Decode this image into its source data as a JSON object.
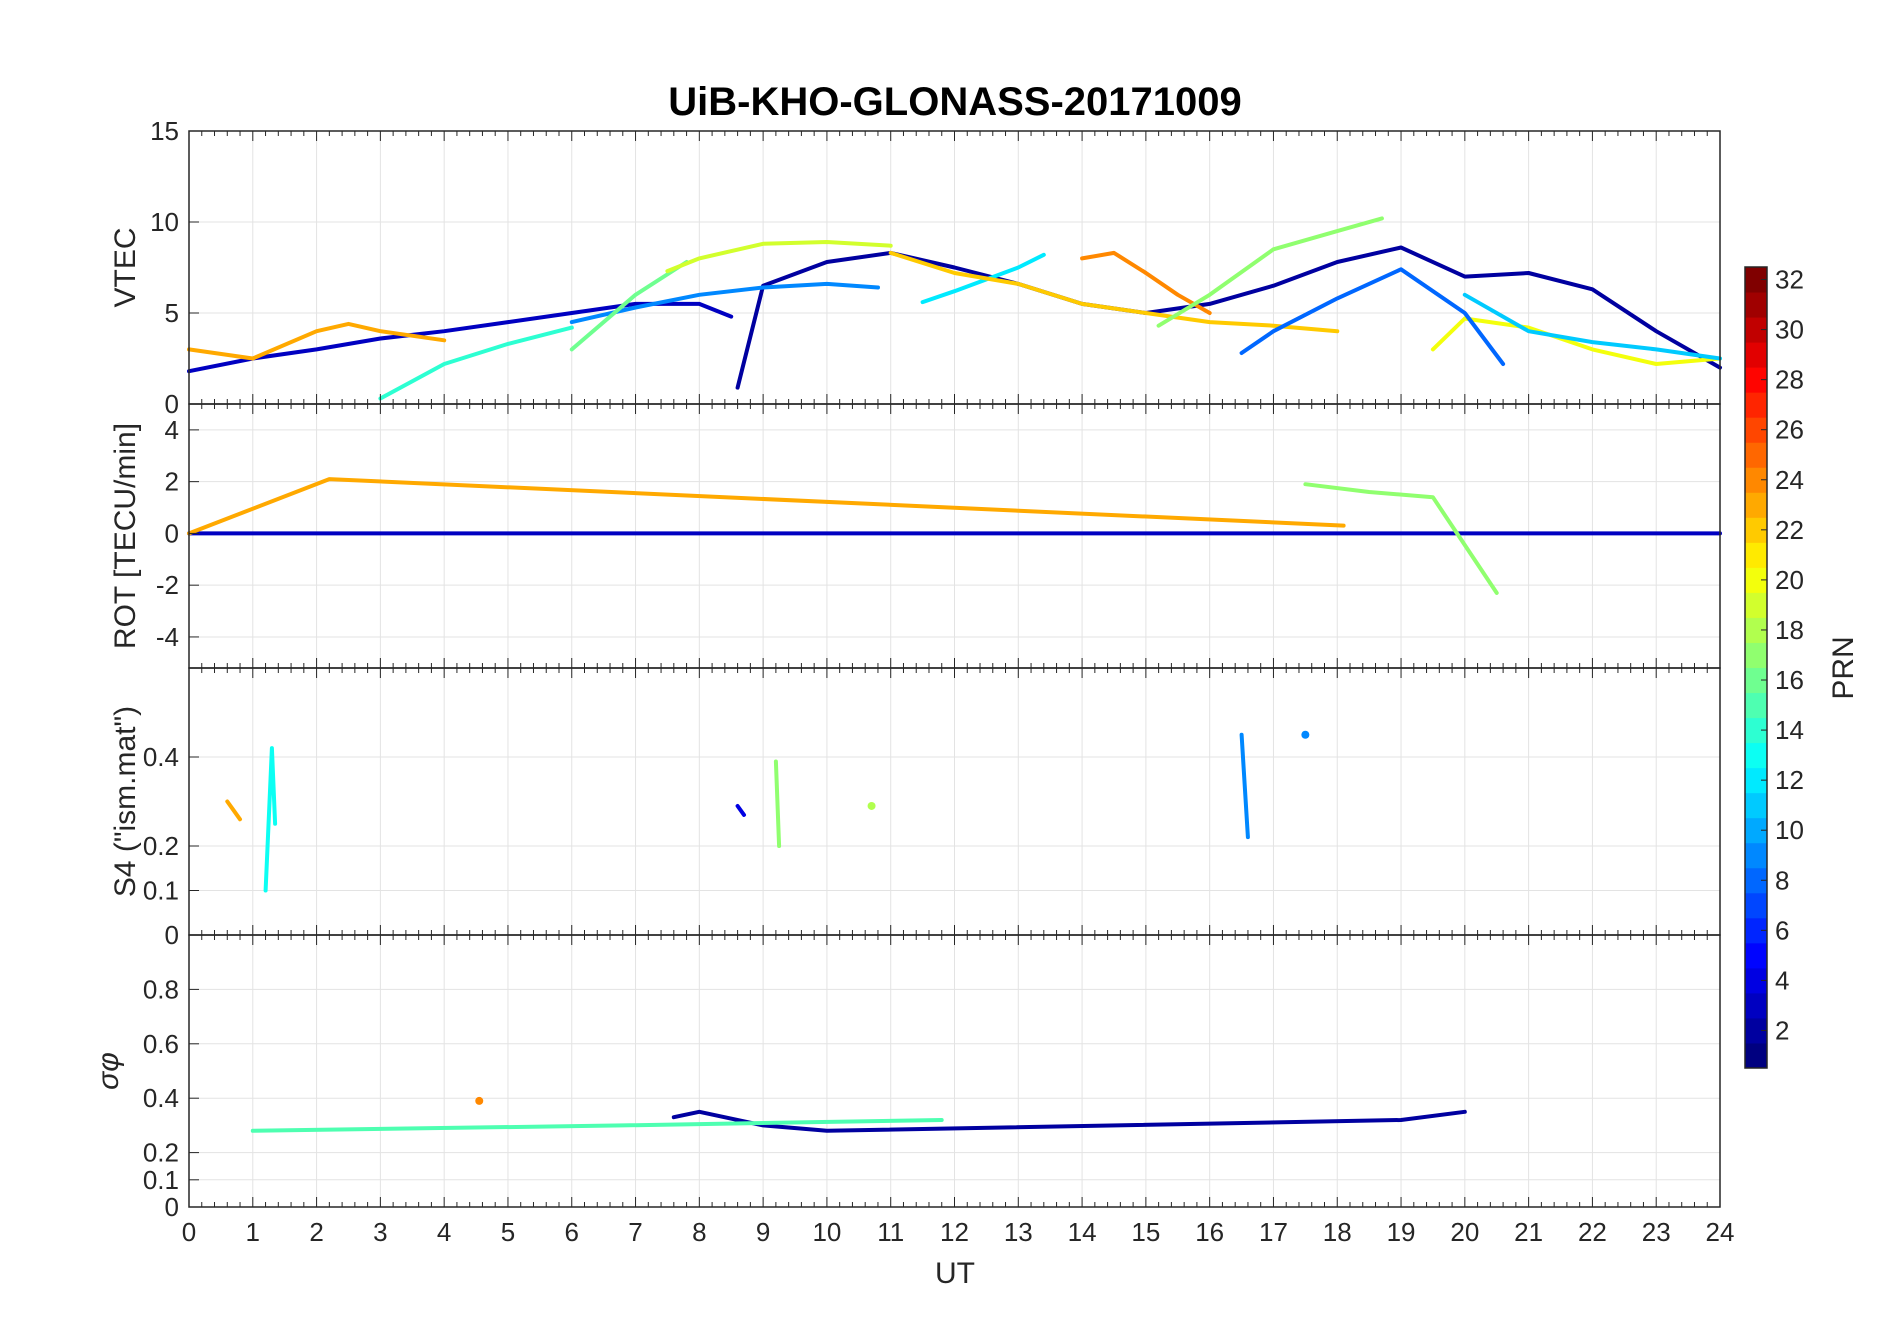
{
  "chart_data": {
    "type": "line",
    "title": "UiB-KHO-GLONASS-20171009",
    "xlabel": "UT",
    "x_ticks": [
      "0",
      "1",
      "2",
      "3",
      "4",
      "5",
      "6",
      "7",
      "8",
      "9",
      "10",
      "11",
      "12",
      "13",
      "14",
      "15",
      "16",
      "17",
      "18",
      "19",
      "20",
      "21",
      "22",
      "23",
      "24"
    ],
    "xlim": [
      0,
      24
    ],
    "grid": true,
    "colorbar": {
      "label": "PRN",
      "colormap": "jet",
      "range": [
        1,
        32
      ],
      "ticks": [
        "2",
        "4",
        "6",
        "8",
        "10",
        "12",
        "14",
        "16",
        "18",
        "20",
        "22",
        "24",
        "26",
        "28",
        "30",
        "32"
      ]
    },
    "panels": [
      {
        "ylabel": "VTEC",
        "ylim": [
          0,
          15
        ],
        "y_ticks": [
          "0",
          "5",
          "10",
          "15"
        ],
        "series": [
          {
            "prn": 3,
            "x": [
              0,
              1,
              2,
              3,
              4,
              5,
              6,
              7,
              8,
              8.5
            ],
            "y": [
              1.8,
              2.5,
              3.0,
              3.6,
              4.0,
              4.5,
              5.0,
              5.5,
              5.5,
              4.8
            ]
          },
          {
            "prn": 2,
            "x": [
              8.6,
              9,
              10,
              11,
              12,
              13,
              14,
              15,
              16,
              17,
              18,
              19,
              20,
              21,
              22,
              23,
              24
            ],
            "y": [
              0.9,
              6.5,
              7.8,
              8.3,
              7.5,
              6.6,
              5.5,
              5.0,
              5.5,
              6.5,
              7.8,
              8.6,
              7.0,
              7.2,
              6.3,
              4.0,
              2.0
            ]
          },
          {
            "prn": 9,
            "x": [
              6,
              7,
              8,
              9,
              10,
              10.8
            ],
            "y": [
              4.5,
              5.3,
              6.0,
              6.4,
              6.6,
              6.4
            ]
          },
          {
            "prn": 12,
            "x": [
              11.5,
              12,
              13,
              13.4
            ],
            "y": [
              5.6,
              6.2,
              7.5,
              8.2
            ]
          },
          {
            "prn": 16,
            "x": [
              6,
              7,
              7.8
            ],
            "y": [
              3.0,
              6.0,
              7.8
            ]
          },
          {
            "prn": 14,
            "x": [
              3,
              4,
              5,
              6
            ],
            "y": [
              0.3,
              2.2,
              3.3,
              4.2
            ]
          },
          {
            "prn": 19,
            "x": [
              7.5,
              8,
              9,
              10,
              11
            ],
            "y": [
              7.3,
              8.0,
              8.8,
              8.9,
              8.7
            ]
          },
          {
            "prn": 22,
            "x": [
              11,
              12,
              13,
              14,
              15,
              16,
              17,
              18
            ],
            "y": [
              8.3,
              7.2,
              6.6,
              5.5,
              5.0,
              4.5,
              4.3,
              4.0
            ]
          },
          {
            "prn": 23,
            "x": [
              0,
              1,
              2,
              2.5,
              3,
              4
            ],
            "y": [
              3.0,
              2.5,
              4.0,
              4.4,
              4.0,
              3.5
            ]
          },
          {
            "prn": 24,
            "x": [
              14,
              14.5,
              15,
              15.5,
              16
            ],
            "y": [
              8.0,
              8.3,
              7.2,
              6.0,
              5.0
            ]
          },
          {
            "prn": 17,
            "x": [
              15.2,
              16,
              17,
              18,
              18.7
            ],
            "y": [
              4.3,
              6.0,
              8.5,
              9.5,
              10.2
            ]
          },
          {
            "prn": 20,
            "x": [
              19.5,
              20,
              21,
              22,
              23,
              24
            ],
            "y": [
              3.0,
              4.7,
              4.2,
              3.0,
              2.2,
              2.5
            ]
          },
          {
            "prn": 8,
            "x": [
              16.5,
              17,
              18,
              19,
              20,
              20.6
            ],
            "y": [
              2.8,
              4.0,
              5.8,
              7.4,
              5.0,
              2.2
            ]
          },
          {
            "prn": 11,
            "x": [
              20,
              21,
              22,
              23,
              24
            ],
            "y": [
              6.0,
              4.0,
              3.4,
              3.0,
              2.5
            ]
          }
        ]
      },
      {
        "ylabel": "ROT [TECU/min]",
        "ylim": [
          -5.2,
          5.0
        ],
        "y_ticks": [
          "-4",
          "-2",
          "0",
          "2",
          "4"
        ],
        "series": [
          {
            "prn": 3,
            "x": [
              0,
              1,
              2,
              3,
              4,
              5,
              6,
              7,
              8,
              9,
              10,
              11,
              12,
              13,
              14,
              15,
              16,
              17,
              18,
              19,
              20,
              21,
              22,
              23,
              24
            ],
            "y": [
              0,
              0,
              0,
              0,
              0,
              0,
              0,
              0,
              0,
              0,
              0,
              0,
              0,
              0,
              0,
              0,
              0,
              0,
              0,
              0,
              0,
              0,
              0,
              0,
              0
            ]
          },
          {
            "prn": 23,
            "x": [
              0,
              2.2,
              18.1
            ],
            "y": [
              0,
              2.1,
              0.3
            ]
          },
          {
            "prn": 17,
            "x": [
              17.5,
              18.5,
              19.5,
              20.5
            ],
            "y": [
              1.9,
              1.6,
              1.4,
              -2.3
            ]
          }
        ]
      },
      {
        "ylabel": "S4 (\"ism.mat\")",
        "ylim": [
          0,
          0.6
        ],
        "y_ticks": [
          "0",
          "0.1",
          "0.2",
          "0.4"
        ],
        "series": [
          {
            "prn": 23,
            "x": [
              0.6,
              0.7,
              0.8
            ],
            "y": [
              0.3,
              0.28,
              0.26
            ]
          },
          {
            "prn": 13,
            "x": [
              1.2,
              1.3,
              1.35
            ],
            "y": [
              0.1,
              0.42,
              0.25
            ]
          },
          {
            "prn": 4,
            "x": [
              8.6,
              8.7
            ],
            "y": [
              0.29,
              0.27
            ]
          },
          {
            "prn": 17,
            "x": [
              9.2,
              9.25
            ],
            "y": [
              0.39,
              0.2
            ]
          },
          {
            "prn": 18,
            "x": [
              10.7
            ],
            "y": [
              0.29
            ]
          },
          {
            "prn": 9,
            "x": [
              16.5,
              16.6
            ],
            "y": [
              0.45,
              0.22
            ]
          },
          {
            "prn": 9,
            "x": [
              17.5
            ],
            "y": [
              0.45
            ]
          }
        ]
      },
      {
        "ylabel": "σφ",
        "ylim": [
          0,
          1.0
        ],
        "y_ticks": [
          "0",
          "0.1",
          "0.2",
          "0.4",
          "0.6",
          "0.8"
        ],
        "series": [
          {
            "prn": 24,
            "x": [
              4.55
            ],
            "y": [
              0.39
            ]
          },
          {
            "prn": 2,
            "x": [
              7.6,
              8,
              9,
              10,
              19,
              20
            ],
            "y": [
              0.33,
              0.35,
              0.3,
              0.28,
              0.32,
              0.35
            ]
          },
          {
            "prn": 15,
            "x": [
              1,
              6.8,
              11.8
            ],
            "y": [
              0.28,
              0.3,
              0.32
            ]
          }
        ]
      }
    ]
  }
}
